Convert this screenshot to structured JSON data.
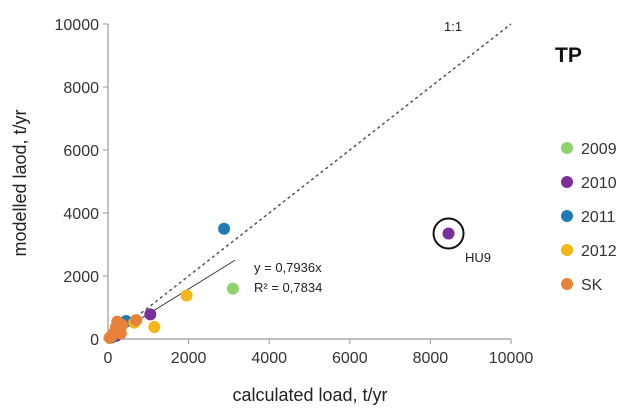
{
  "chart_data": {
    "type": "scatter",
    "panel_label": "TP",
    "xlabel": "calculated load, t/yr",
    "ylabel": "modelled laod, t/yr",
    "xlim": [
      0,
      10000
    ],
    "ylim": [
      0,
      10000
    ],
    "xticks": [
      "0",
      "2000",
      "4000",
      "6000",
      "8000",
      "10000"
    ],
    "yticks": [
      "0",
      "2000",
      "4000",
      "6000",
      "8000",
      "10000"
    ],
    "grid": false,
    "legend_position": "right",
    "series": [
      {
        "name": "2009",
        "color": "#8fd46a",
        "points": [
          [
            3100,
            1600
          ],
          [
            60,
            30
          ],
          [
            180,
            150
          ]
        ]
      },
      {
        "name": "2010",
        "color": "#7a2f9b",
        "points": [
          [
            8450,
            3350
          ],
          [
            1050,
            780
          ],
          [
            200,
            100
          ],
          [
            90,
            50
          ]
        ]
      },
      {
        "name": "2011",
        "color": "#1e7bb5",
        "points": [
          [
            2880,
            3500
          ],
          [
            450,
            570
          ],
          [
            120,
            80
          ]
        ]
      },
      {
        "name": "2012",
        "color": "#f5b617",
        "points": [
          [
            1950,
            1380
          ],
          [
            1150,
            380
          ],
          [
            650,
            520
          ],
          [
            300,
            200
          ]
        ]
      },
      {
        "name": "SK",
        "color": "#e8823a",
        "points": [
          [
            700,
            600
          ],
          [
            350,
            450
          ],
          [
            280,
            300
          ],
          [
            230,
            550
          ],
          [
            180,
            250
          ],
          [
            150,
            200
          ],
          [
            120,
            150
          ],
          [
            90,
            100
          ],
          [
            60,
            60
          ],
          [
            40,
            40
          ],
          [
            200,
            380
          ],
          [
            320,
            180
          ]
        ]
      }
    ],
    "identity_line": {
      "label": "1:1",
      "from": [
        0,
        0
      ],
      "to": [
        10000,
        10000
      ]
    },
    "regression": {
      "slope": 0.7936,
      "from": [
        0,
        0
      ],
      "to": [
        3150,
        2500
      ],
      "equation": "y = 0,7936x",
      "r2": "R² = 0,7834"
    },
    "highlight": {
      "label": "HU9",
      "point": [
        8450,
        3350
      ]
    }
  }
}
